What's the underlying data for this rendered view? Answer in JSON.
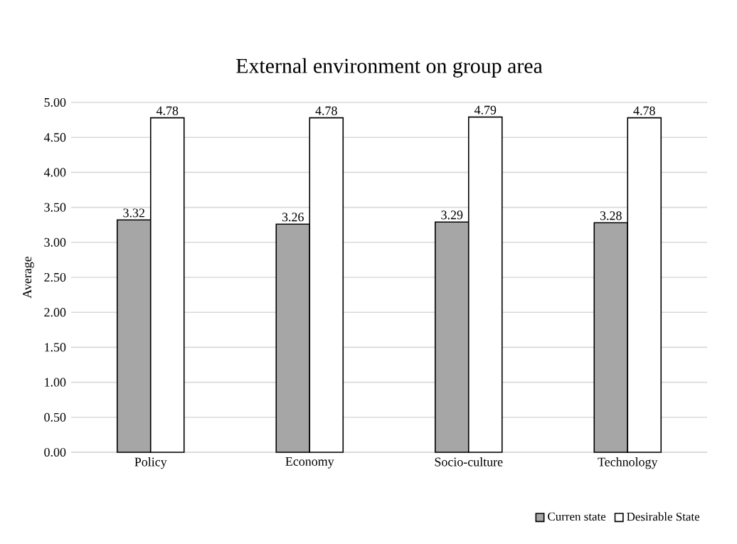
{
  "chart_data": {
    "type": "bar",
    "title": "External environment on group area",
    "ylabel": "Average",
    "categories": [
      "Policy",
      "Economy",
      "Socio-culture",
      "Technology"
    ],
    "series": [
      {
        "name": "Curren state",
        "color": "#a6a6a6",
        "values": [
          3.32,
          3.26,
          3.29,
          3.28
        ]
      },
      {
        "name": "Desirable State",
        "color": "#ffffff",
        "values": [
          4.78,
          4.78,
          4.79,
          4.78
        ]
      }
    ],
    "ylim": [
      0,
      5
    ],
    "yticks": [
      {
        "value": 0,
        "label": "0.00"
      },
      {
        "value": 0.5,
        "label": "0.50"
      },
      {
        "value": 1,
        "label": "1.00"
      },
      {
        "value": 1.5,
        "label": "1.50"
      },
      {
        "value": 2,
        "label": "2.00"
      },
      {
        "value": 2.5,
        "label": "2.50"
      },
      {
        "value": 3,
        "label": "3.00"
      },
      {
        "value": 3.5,
        "label": "3.50"
      },
      {
        "value": 4,
        "label": "4.00"
      },
      {
        "value": 4.5,
        "label": "4.50"
      },
      {
        "value": 5,
        "label": "5.00"
      }
    ],
    "grid": "y",
    "data_labels": true,
    "legend": "bottom right"
  }
}
